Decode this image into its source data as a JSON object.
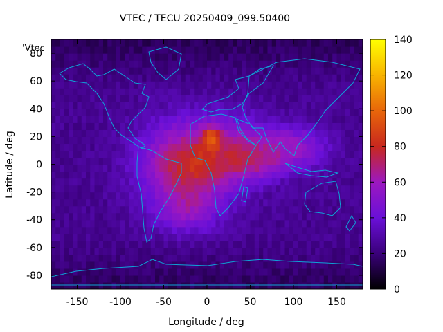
{
  "chart_data": {
    "type": "heatmap",
    "title": "VTEC / TECU 20250409_099.50400",
    "xlabel": "Longitude / deg",
    "ylabel": "Latitude / deg",
    "series_key": "'Vtec_",
    "xlim": [
      -180,
      180
    ],
    "ylim": [
      -90,
      90
    ],
    "xticks": [
      -150,
      -100,
      -50,
      0,
      50,
      100,
      150
    ],
    "yticks": [
      -80,
      -60,
      -40,
      -20,
      0,
      20,
      40,
      60,
      80
    ],
    "colorbar": {
      "min": 0,
      "max": 140,
      "ticks": [
        0,
        20,
        40,
        60,
        80,
        100,
        120,
        140
      ],
      "colors": [
        "#000000",
        "#3a007a",
        "#6a10d8",
        "#9c18c0",
        "#c8281e",
        "#e8660a",
        "#f8b400",
        "#ffff00"
      ]
    },
    "coastline_color": "#0fa3d8",
    "grid_step_deg": 5,
    "vtec_blobs": [
      {
        "lon": -20,
        "lat": 0,
        "slon": 55,
        "slat": 30,
        "amp": 55
      },
      {
        "lon": 40,
        "lat": 12,
        "slon": 40,
        "slat": 22,
        "amp": 25
      },
      {
        "lon": 100,
        "lat": 12,
        "slon": 40,
        "slat": 16,
        "amp": 30
      },
      {
        "lon": -25,
        "lat": -35,
        "slon": 35,
        "slat": 15,
        "amp": 20
      },
      {
        "lon": 5,
        "lat": 20,
        "slon": 10,
        "slat": 8,
        "amp": 35
      },
      {
        "lon": 60,
        "lat": 0,
        "slon": 30,
        "slat": 12,
        "amp": 15
      }
    ],
    "vtec_base": 25
  }
}
